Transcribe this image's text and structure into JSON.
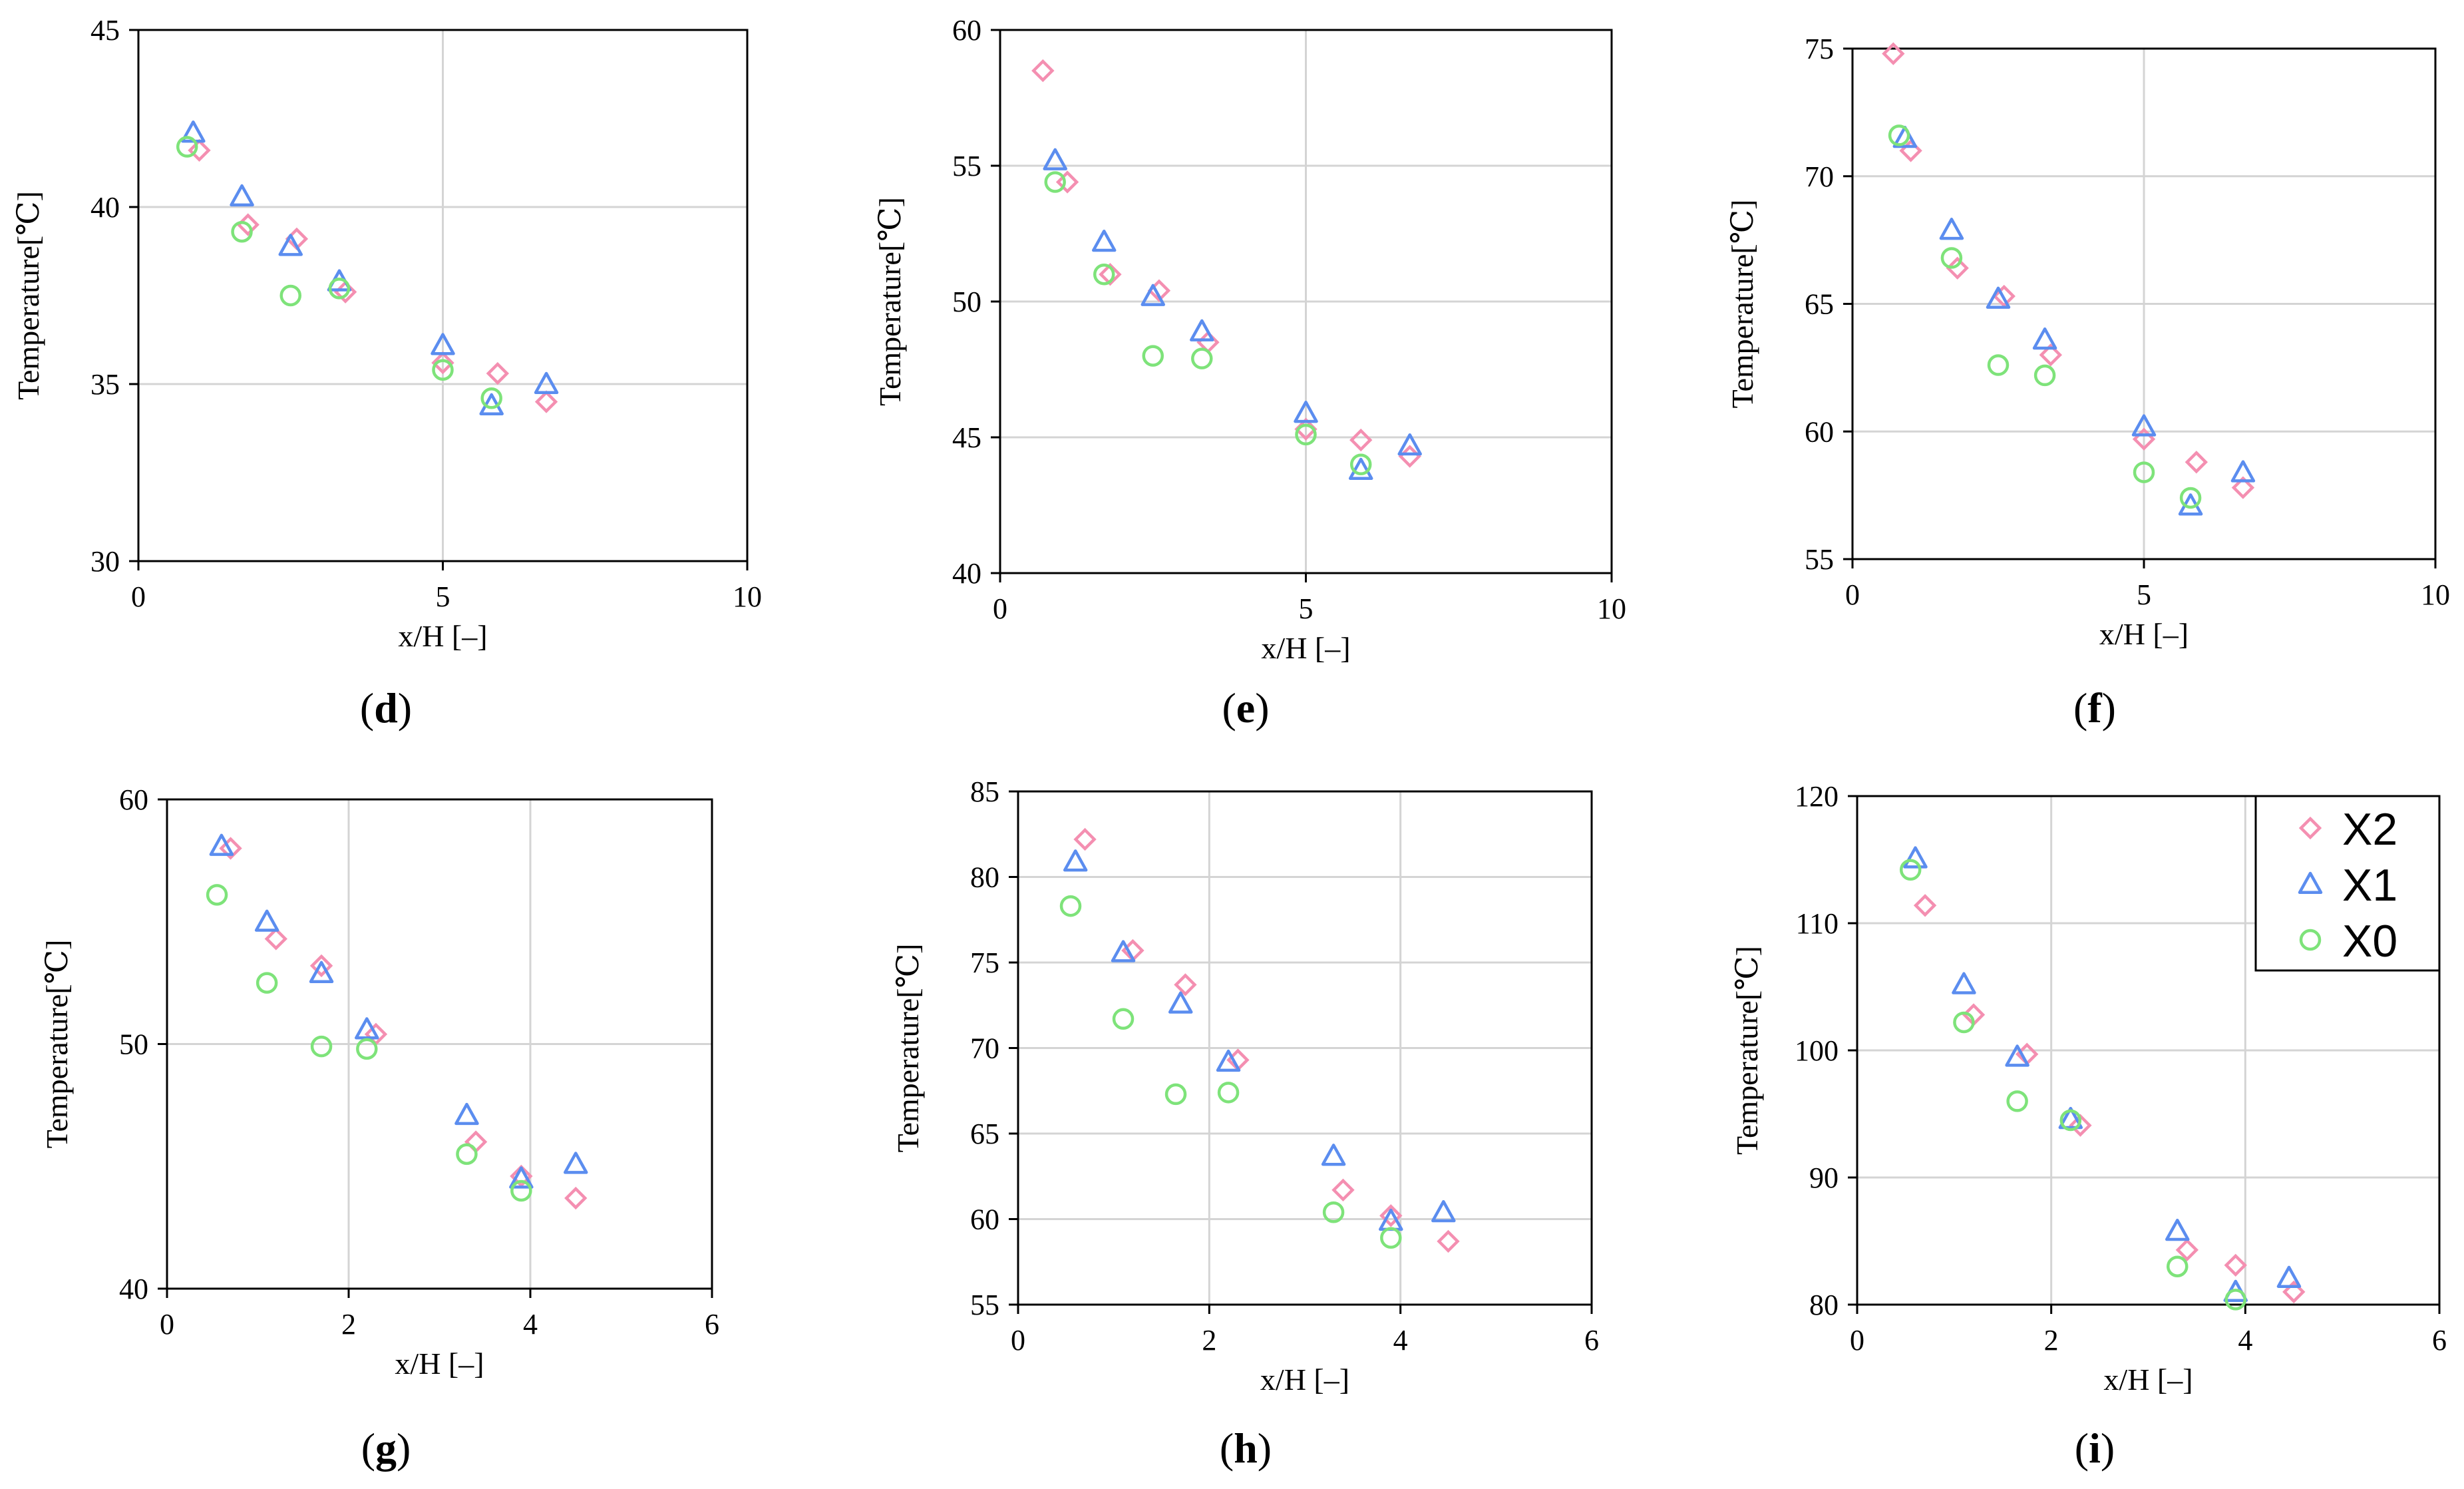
{
  "figure": {
    "legend": {
      "entries": [
        {
          "name": "X2",
          "marker": "diamond",
          "color": "#f48fb1"
        },
        {
          "name": "X1",
          "marker": "triangle",
          "color": "#5b8def"
        },
        {
          "name": "X0",
          "marker": "circle",
          "color": "#7ee37a"
        }
      ]
    }
  },
  "chart_data": [
    {
      "panel": "d",
      "type": "scatter",
      "xlabel": "x/H [–]",
      "ylabel": "Temperature[℃]",
      "xlim": [
        0,
        10
      ],
      "ylim": [
        30,
        45
      ],
      "xticks": [
        0,
        5,
        10
      ],
      "yticks": [
        30,
        35,
        40,
        45
      ],
      "xtick_labels": [
        "0",
        "5",
        "10"
      ],
      "ytick_labels": [
        "30",
        "35",
        "40",
        "45"
      ],
      "series": [
        {
          "name": "X2",
          "x": [
            1.0,
            1.8,
            2.6,
            3.4,
            5.0,
            5.9,
            6.7
          ],
          "y": [
            41.6,
            39.5,
            39.1,
            37.6,
            35.6,
            35.3,
            34.5
          ]
        },
        {
          "name": "X1",
          "x": [
            0.9,
            1.7,
            2.5,
            3.3,
            5.0,
            5.8,
            6.7
          ],
          "y": [
            42.1,
            40.3,
            38.9,
            37.9,
            36.1,
            34.4,
            35.0
          ]
        },
        {
          "name": "X0",
          "x": [
            0.8,
            1.7,
            2.5,
            3.3,
            5.0,
            5.8
          ],
          "y": [
            41.7,
            39.3,
            37.5,
            37.7,
            35.4,
            34.6
          ]
        }
      ]
    },
    {
      "panel": "e",
      "type": "scatter",
      "xlabel": "x/H [–]",
      "ylabel": "Temperature[℃]",
      "xlim": [
        0,
        10
      ],
      "ylim": [
        40,
        60
      ],
      "xticks": [
        0,
        5,
        10
      ],
      "yticks": [
        40,
        45,
        50,
        55,
        60
      ],
      "xtick_labels": [
        "0",
        "5",
        "10"
      ],
      "ytick_labels": [
        "40",
        "45",
        "50",
        "55",
        "60"
      ],
      "series": [
        {
          "name": "X2",
          "x": [
            0.7,
            1.1,
            1.8,
            2.6,
            3.4,
            5.0,
            5.9,
            6.7
          ],
          "y": [
            58.5,
            54.4,
            51.0,
            50.4,
            48.5,
            45.3,
            44.9,
            44.3
          ]
        },
        {
          "name": "X1",
          "x": [
            0.9,
            1.7,
            2.5,
            3.3,
            5.0,
            5.9,
            6.7
          ],
          "y": [
            55.2,
            52.2,
            50.2,
            48.9,
            45.9,
            43.8,
            44.7
          ]
        },
        {
          "name": "X0",
          "x": [
            0.9,
            1.7,
            2.5,
            3.3,
            5.0,
            5.9
          ],
          "y": [
            54.4,
            51.0,
            48.0,
            47.9,
            45.1,
            44.0
          ]
        }
      ]
    },
    {
      "panel": "f",
      "type": "scatter",
      "xlabel": "x/H [–]",
      "ylabel": "Temperature[℃]",
      "xlim": [
        0,
        10
      ],
      "ylim": [
        55,
        75
      ],
      "xticks": [
        0,
        5,
        10
      ],
      "yticks": [
        55,
        60,
        65,
        70,
        75
      ],
      "xtick_labels": [
        "0",
        "5",
        "10"
      ],
      "ytick_labels": [
        "55",
        "60",
        "65",
        "70",
        "75"
      ],
      "series": [
        {
          "name": "X2",
          "x": [
            0.7,
            1.0,
            1.8,
            2.6,
            3.4,
            5.0,
            5.9,
            6.7
          ],
          "y": [
            74.8,
            71.0,
            66.4,
            65.3,
            63.0,
            59.7,
            58.8,
            57.8
          ]
        },
        {
          "name": "X1",
          "x": [
            0.9,
            1.7,
            2.5,
            3.3,
            5.0,
            5.8,
            6.7
          ],
          "y": [
            71.5,
            67.9,
            65.2,
            63.6,
            60.2,
            57.1,
            58.4
          ]
        },
        {
          "name": "X0",
          "x": [
            0.8,
            1.7,
            2.5,
            3.3,
            5.0,
            5.8
          ],
          "y": [
            71.6,
            66.8,
            62.6,
            62.2,
            58.4,
            57.4
          ]
        }
      ]
    },
    {
      "panel": "g",
      "type": "scatter",
      "xlabel": "x/H [–]",
      "ylabel": "Temperature[℃]",
      "xlim": [
        0,
        6
      ],
      "ylim": [
        40,
        60
      ],
      "xticks": [
        0,
        2,
        4,
        6
      ],
      "yticks": [
        40,
        50,
        60
      ],
      "xtick_labels": [
        "0",
        "2",
        "4",
        "6"
      ],
      "ytick_labels": [
        "40",
        "50",
        "60"
      ],
      "series": [
        {
          "name": "X2",
          "x": [
            0.7,
            1.2,
            1.7,
            2.3,
            3.4,
            3.9,
            4.5
          ],
          "y": [
            58.0,
            54.3,
            53.2,
            50.4,
            46.0,
            44.6,
            43.7
          ]
        },
        {
          "name": "X1",
          "x": [
            0.6,
            1.1,
            1.7,
            2.2,
            3.3,
            3.9,
            4.5
          ],
          "y": [
            58.1,
            55.0,
            52.9,
            50.6,
            47.1,
            44.5,
            45.1
          ]
        },
        {
          "name": "X0",
          "x": [
            0.55,
            1.1,
            1.7,
            2.2,
            3.3,
            3.9
          ],
          "y": [
            56.1,
            52.5,
            49.9,
            49.8,
            45.5,
            44.0
          ]
        }
      ]
    },
    {
      "panel": "h",
      "type": "scatter",
      "xlabel": "x/H [–]",
      "ylabel": "Temperature[℃]",
      "xlim": [
        0,
        6
      ],
      "ylim": [
        55,
        85
      ],
      "xticks": [
        0,
        2,
        4,
        6
      ],
      "yticks": [
        55,
        60,
        65,
        70,
        75,
        80,
        85
      ],
      "xtick_labels": [
        "0",
        "2",
        "4",
        "6"
      ],
      "ytick_labels": [
        "55",
        "60",
        "65",
        "70",
        "75",
        "80",
        "85"
      ],
      "series": [
        {
          "name": "X2",
          "x": [
            0.7,
            1.2,
            1.75,
            2.3,
            3.4,
            3.9,
            4.5
          ],
          "y": [
            82.2,
            75.7,
            73.7,
            69.3,
            61.7,
            60.2,
            58.7
          ]
        },
        {
          "name": "X1",
          "x": [
            0.6,
            1.1,
            1.7,
            2.2,
            3.3,
            3.9,
            4.45
          ],
          "y": [
            80.9,
            75.6,
            72.6,
            69.2,
            63.7,
            59.9,
            60.4
          ]
        },
        {
          "name": "X0",
          "x": [
            0.55,
            1.1,
            1.65,
            2.2,
            3.3,
            3.9
          ],
          "y": [
            78.3,
            71.7,
            67.3,
            67.4,
            60.4,
            58.9
          ]
        }
      ]
    },
    {
      "panel": "i",
      "type": "scatter",
      "xlabel": "x/H [–]",
      "ylabel": "Temperature[℃]",
      "xlim": [
        0,
        6
      ],
      "ylim": [
        80,
        120
      ],
      "xticks": [
        0,
        2,
        4,
        6
      ],
      "yticks": [
        80,
        90,
        100,
        110,
        120
      ],
      "xtick_labels": [
        "0",
        "2",
        "4",
        "6"
      ],
      "ytick_labels": [
        "80",
        "90",
        "100",
        "110",
        "120"
      ],
      "series": [
        {
          "name": "X2",
          "x": [
            0.7,
            1.2,
            1.75,
            2.3,
            3.4,
            3.9,
            4.5
          ],
          "y": [
            111.4,
            102.8,
            99.7,
            94.1,
            84.3,
            83.1,
            81.0
          ]
        },
        {
          "name": "X1",
          "x": [
            0.6,
            1.1,
            1.65,
            2.2,
            3.3,
            3.9,
            4.45
          ],
          "y": [
            115.1,
            105.2,
            99.5,
            94.6,
            85.8,
            81.0,
            82.1
          ]
        },
        {
          "name": "X0",
          "x": [
            0.55,
            1.1,
            1.65,
            2.2,
            3.3,
            3.9
          ],
          "y": [
            114.2,
            102.2,
            96.0,
            94.5,
            83.0,
            80.4
          ]
        }
      ]
    }
  ]
}
